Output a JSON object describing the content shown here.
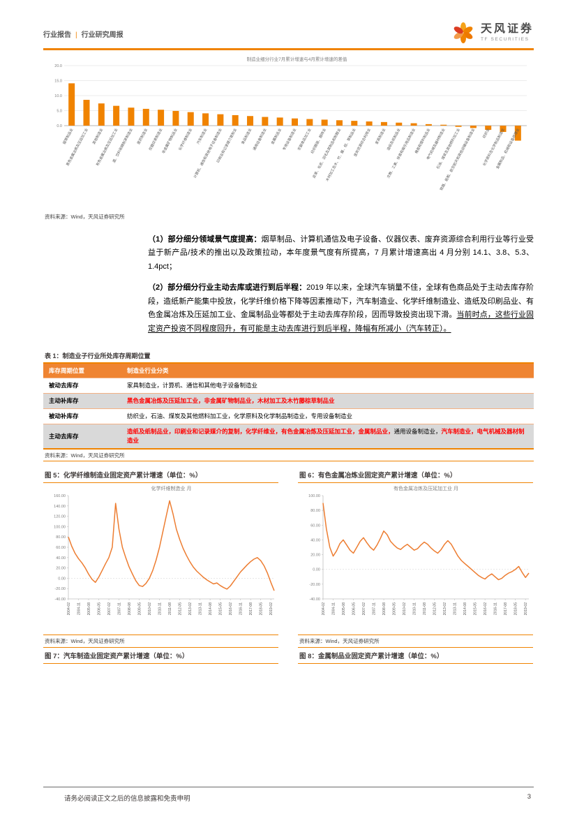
{
  "colors": {
    "accent": "#F08300",
    "line": "#ED7D31",
    "red": "#FF0000",
    "gray_text": "#595959",
    "axis_text": "#7f7f7f"
  },
  "header": {
    "category": "行业报告",
    "divider": "|",
    "subtitle": "行业研究周报",
    "brand": "天风证券",
    "brand_en": "TF SECURITIES"
  },
  "sources": {
    "wind": "资料来源：Wind，天风证券研究所"
  },
  "paragraphs": [
    {
      "segments": [
        {
          "text": "（1）部分细分领域景气度提高：",
          "bold": true
        },
        {
          "text": "烟草制品、计算机通信及电子设备、仪器仪表、废弃资源综合利用行业等行业受益于新产品/技术的推出以及政策拉动，本年度景气度有所提高，7 月累计增速高出 4 月分别 14.1、3.8、5.3、1.4pct；"
        }
      ]
    },
    {
      "segments": [
        {
          "text": "（2）部分细分行业主动去库或进行到后半程：",
          "bold": true
        },
        {
          "text": "2019 年以来，全球汽车销量不佳，全球有色商品处于主动去库存阶段，造纸新产能集中投放，化学纤维价格下降等因素推动下，汽车制造业、化学纤维制造业、造纸及印刷品业、有色金属冶炼及压延加工业、金属制品业等都处于主动去库存阶段，因而导致投资出现下滑。"
        },
        {
          "text": "当前时点，这些行业固定资产投资不同程度回升，有可能是主动去库进行到后半程，降幅有所减小（汽车转正）。",
          "underline": true
        }
      ]
    }
  ],
  "table": {
    "caption": "表 1：制造业子行业所处库存周期位置",
    "col_headers": [
      "库存周期位置",
      "制造业行业分类"
    ],
    "rows": [
      {
        "position": "被动去库存",
        "shaded": false,
        "segments": [
          {
            "text": "家具制造业，计算机、通信和其他电子设备制造业"
          }
        ]
      },
      {
        "position": "主动补库存",
        "shaded": true,
        "segments": [
          {
            "text": "黑色金属冶炼及压延加工业，非金属矿物制品业，木材加工及木竹藤棕草制品业",
            "red": true
          }
        ]
      },
      {
        "position": "被动补库存",
        "shaded": false,
        "segments": [
          {
            "text": "纺织业，石油、煤炭及其他燃料加工业，化学原料及化学制品制造业，专用设备制造业"
          }
        ]
      },
      {
        "position": "主动去库存",
        "shaded": true,
        "segments": [
          {
            "text": "造纸及纸制品业，印刷业和记录媒介的复制，化学纤维业，有色金属冶炼及压延加工业，金属制品业，",
            "red": true
          },
          {
            "text": "通用设备制造业，"
          },
          {
            "text": "汽车制造业，电气机械及器材制造业",
            "red": true
          }
        ]
      }
    ]
  },
  "figures": {
    "fig5_caption": "图 5：化学纤维制造业固定资产累计增速（单位：%）",
    "fig6_caption": "图 6：有色金属冶炼业固定资产累计增速（单位：%）",
    "fig7_caption": "图 7：汽车制造业固定资产累计增速（单位：%）",
    "fig8_caption": "图 8：金属制品业固定资产累计增速（单位：%）"
  },
  "footer": {
    "disclaimer": "请务必阅读正文之后的信息披露和免责申明",
    "page": "3"
  },
  "chart_data": [
    {
      "type": "bar",
      "title": "制造业细分行业7月累计增速与4月累计增速的差值",
      "categories": [
        "烟草制品业",
        "黑色金属冶炼及压延加工业",
        "其他制造业",
        "有色金属冶炼及压延加工业",
        "酒、饮料和精制茶制造业",
        "医药制造业",
        "仪器仪表制造业",
        "非金属矿物制品业",
        "化学纤维制造业",
        "汽车制造业",
        "计算机、通信和其他电子设备制造业",
        "印刷业和记录媒介复制业",
        "食品制造业",
        "通用设备制造业",
        "金属制品业",
        "专用设备制造业",
        "农副食品加工业",
        "纺织服装、服饰业",
        "皮革、毛皮、羽毛及其制品和制鞋业",
        "木材加工及木、竹、藤、棕、草制品业",
        "废弃资源综合利用业",
        "家具制造业",
        "造纸及纸制品业",
        "文教、工美、体育和娱乐用品制造业",
        "橡胶和塑料制品业",
        "电气机械及器材制造业",
        "石油、煤炭及其他燃料加工业",
        "铁路、船舶、航空航天和其他运输设备制造业",
        "纺织业",
        "化学原料及化学制品制造业",
        "金属制品、机械和设备修理业"
      ],
      "values": [
        14.1,
        8.6,
        7.4,
        6.6,
        6.0,
        5.6,
        5.3,
        4.9,
        4.5,
        4.1,
        3.8,
        3.5,
        3.2,
        2.9,
        2.7,
        2.4,
        2.2,
        2.0,
        1.8,
        1.6,
        1.4,
        1.2,
        1.0,
        0.8,
        0.5,
        0.3,
        -0.4,
        -0.8,
        -1.4,
        -2.1,
        -5.0
      ],
      "ylim": [
        -10,
        20
      ],
      "yticks": [
        20,
        15,
        10,
        5,
        0
      ],
      "ylabel": "",
      "xlabel": ""
    },
    {
      "type": "line",
      "title": "化学纤维制造业 月",
      "x_tick_labels": [
        "2004-02",
        "2004-11",
        "2005-08",
        "2006-05",
        "2007-02",
        "2007-11",
        "2008-08",
        "2009-05",
        "2010-02",
        "2010-11",
        "2011-08",
        "2012-05",
        "2013-02",
        "2013-11",
        "2014-08",
        "2015-05",
        "2016-02",
        "2016-11",
        "2017-08",
        "2018-05",
        "2019-02"
      ],
      "values": [
        80,
        62,
        48,
        38,
        30,
        20,
        8,
        -2,
        -8,
        2,
        15,
        28,
        40,
        60,
        145,
        95,
        60,
        40,
        22,
        8,
        -5,
        -14,
        -16,
        -10,
        0,
        15,
        35,
        60,
        90,
        120,
        150,
        125,
        95,
        75,
        58,
        44,
        32,
        22,
        14,
        8,
        2,
        -3,
        -7,
        -11,
        -9,
        -14,
        -18,
        -21,
        -15,
        -6,
        3,
        12,
        19,
        26,
        32,
        37,
        40,
        34,
        24,
        10,
        -8,
        -24
      ],
      "ylim": [
        -40,
        160
      ],
      "yticks": [
        160,
        140,
        120,
        100,
        80,
        60,
        40,
        20,
        0,
        -20,
        -40
      ]
    },
    {
      "type": "line",
      "title": "有色金属冶炼及压延加工业 月",
      "x_tick_labels": [
        "2004-02",
        "2004-11",
        "2005-08",
        "2006-05",
        "2007-02",
        "2007-11",
        "2008-08",
        "2009-05",
        "2010-02",
        "2010-11",
        "2011-08",
        "2012-05",
        "2013-02",
        "2013-11",
        "2014-08",
        "2015-05",
        "2016-02",
        "2016-11",
        "2017-08",
        "2018-05",
        "2019-02"
      ],
      "values": [
        90,
        55,
        30,
        18,
        25,
        35,
        40,
        33,
        26,
        22,
        30,
        38,
        43,
        36,
        30,
        26,
        33,
        42,
        52,
        47,
        38,
        33,
        29,
        27,
        31,
        34,
        30,
        26,
        28,
        33,
        37,
        34,
        29,
        25,
        22,
        27,
        34,
        39,
        34,
        26,
        18,
        12,
        8,
        4,
        0,
        -4,
        -8,
        -11,
        -13,
        -9,
        -6,
        -10,
        -14,
        -12,
        -8,
        -5,
        -3,
        0,
        4,
        -4,
        -11,
        -5
      ],
      "ylim": [
        -40,
        100
      ],
      "yticks": [
        100,
        80,
        60,
        40,
        20,
        0,
        -20,
        -40
      ]
    }
  ]
}
